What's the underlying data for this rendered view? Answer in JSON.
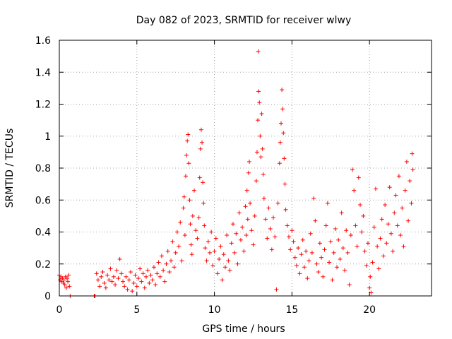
{
  "chart_data": {
    "type": "scatter",
    "title": "Day 082 of 2023, SRMTID for receiver wlwy",
    "xlabel": "GPS time / hours",
    "ylabel": "SRMTID / TECUs",
    "xlim": [
      0,
      24
    ],
    "ylim": [
      0,
      1.6
    ],
    "x_ticks": [
      0,
      5,
      10,
      15,
      20
    ],
    "x_tick_labels": [
      "0",
      "5",
      "10",
      "15",
      "20"
    ],
    "y_ticks": [
      0,
      0.2,
      0.4,
      0.6,
      0.8,
      1.0,
      1.2,
      1.4,
      1.6
    ],
    "y_tick_labels": [
      "0",
      "0.2",
      "0.4",
      "0.6",
      "0.8",
      "1",
      "1.2",
      "1.4",
      "1.6"
    ],
    "grid": true,
    "marker": "+",
    "color": "#ff0000",
    "points": [
      [
        0.0,
        0.13
      ],
      [
        0.05,
        0.1
      ],
      [
        0.1,
        0.12
      ],
      [
        0.15,
        0.09
      ],
      [
        0.2,
        0.11
      ],
      [
        0.25,
        0.08
      ],
      [
        0.3,
        0.1
      ],
      [
        0.35,
        0.07
      ],
      [
        0.4,
        0.12
      ],
      [
        0.45,
        0.05
      ],
      [
        0.5,
        0.11
      ],
      [
        0.55,
        0.09
      ],
      [
        0.6,
        0.13
      ],
      [
        0.65,
        0.06
      ],
      [
        0.7,
        0.0
      ],
      [
        2.25,
        0.0
      ],
      [
        2.3,
        0.0
      ],
      [
        2.4,
        0.14
      ],
      [
        2.5,
        0.1
      ],
      [
        2.6,
        0.06
      ],
      [
        2.7,
        0.12
      ],
      [
        2.8,
        0.15
      ],
      [
        2.9,
        0.08
      ],
      [
        3.0,
        0.05
      ],
      [
        3.1,
        0.13
      ],
      [
        3.2,
        0.1
      ],
      [
        3.3,
        0.17
      ],
      [
        3.4,
        0.09
      ],
      [
        3.5,
        0.12
      ],
      [
        3.6,
        0.07
      ],
      [
        3.7,
        0.16
      ],
      [
        3.8,
        0.11
      ],
      [
        3.9,
        0.23
      ],
      [
        4.0,
        0.14
      ],
      [
        4.1,
        0.09
      ],
      [
        4.2,
        0.06
      ],
      [
        4.3,
        0.12
      ],
      [
        4.4,
        0.04
      ],
      [
        4.5,
        0.1
      ],
      [
        4.6,
        0.15
      ],
      [
        4.7,
        0.03
      ],
      [
        4.8,
        0.08
      ],
      [
        4.9,
        0.13
      ],
      [
        5.0,
        0.06
      ],
      [
        5.1,
        0.11
      ],
      [
        5.2,
        0.17
      ],
      [
        5.3,
        0.09
      ],
      [
        5.4,
        0.14
      ],
      [
        5.5,
        0.05
      ],
      [
        5.6,
        0.12
      ],
      [
        5.7,
        0.16
      ],
      [
        5.8,
        0.08
      ],
      [
        5.9,
        0.13
      ],
      [
        6.0,
        0.1
      ],
      [
        6.1,
        0.18
      ],
      [
        6.2,
        0.07
      ],
      [
        6.3,
        0.14
      ],
      [
        6.4,
        0.21
      ],
      [
        6.5,
        0.12
      ],
      [
        6.6,
        0.25
      ],
      [
        6.7,
        0.16
      ],
      [
        6.8,
        0.09
      ],
      [
        6.9,
        0.2
      ],
      [
        7.0,
        0.28
      ],
      [
        7.1,
        0.15
      ],
      [
        7.2,
        0.22
      ],
      [
        7.3,
        0.34
      ],
      [
        7.4,
        0.18
      ],
      [
        7.5,
        0.27
      ],
      [
        7.6,
        0.4
      ],
      [
        7.7,
        0.31
      ],
      [
        7.8,
        0.46
      ],
      [
        7.9,
        0.22
      ],
      [
        8.0,
        0.55
      ],
      [
        8.05,
        0.62
      ],
      [
        8.1,
        0.38
      ],
      [
        8.15,
        0.75
      ],
      [
        8.2,
        0.88
      ],
      [
        8.25,
        0.97
      ],
      [
        8.3,
        1.01
      ],
      [
        8.35,
        0.83
      ],
      [
        8.4,
        0.6
      ],
      [
        8.45,
        0.45
      ],
      [
        8.5,
        0.32
      ],
      [
        8.55,
        0.26
      ],
      [
        8.6,
        0.5
      ],
      [
        8.7,
        0.66
      ],
      [
        8.8,
        0.41
      ],
      [
        8.9,
        0.36
      ],
      [
        9.0,
        0.49
      ],
      [
        9.05,
        0.74
      ],
      [
        9.1,
        0.92
      ],
      [
        9.15,
        1.04
      ],
      [
        9.2,
        0.96
      ],
      [
        9.25,
        0.71
      ],
      [
        9.3,
        0.58
      ],
      [
        9.35,
        0.44
      ],
      [
        9.4,
        0.3
      ],
      [
        9.5,
        0.22
      ],
      [
        9.6,
        0.34
      ],
      [
        9.7,
        0.27
      ],
      [
        9.8,
        0.4
      ],
      [
        9.9,
        0.19
      ],
      [
        10.0,
        0.28
      ],
      [
        10.1,
        0.36
      ],
      [
        10.2,
        0.14
      ],
      [
        10.3,
        0.23
      ],
      [
        10.4,
        0.31
      ],
      [
        10.5,
        0.1
      ],
      [
        10.6,
        0.26
      ],
      [
        10.7,
        0.18
      ],
      [
        10.8,
        0.38
      ],
      [
        10.9,
        0.22
      ],
      [
        11.0,
        0.16
      ],
      [
        11.1,
        0.33
      ],
      [
        11.2,
        0.45
      ],
      [
        11.3,
        0.27
      ],
      [
        11.4,
        0.39
      ],
      [
        11.5,
        0.2
      ],
      [
        11.6,
        0.52
      ],
      [
        11.7,
        0.35
      ],
      [
        11.8,
        0.43
      ],
      [
        11.9,
        0.28
      ],
      [
        12.0,
        0.56
      ],
      [
        12.05,
        0.38
      ],
      [
        12.1,
        0.66
      ],
      [
        12.15,
        0.48
      ],
      [
        12.2,
        0.77
      ],
      [
        12.25,
        0.84
      ],
      [
        12.3,
        0.58
      ],
      [
        12.4,
        0.41
      ],
      [
        12.5,
        0.32
      ],
      [
        12.6,
        0.5
      ],
      [
        12.7,
        0.72
      ],
      [
        12.75,
        0.9
      ],
      [
        12.8,
        1.1
      ],
      [
        12.82,
        1.53
      ],
      [
        12.85,
        1.28
      ],
      [
        12.9,
        1.21
      ],
      [
        12.95,
        1.0
      ],
      [
        13.0,
        0.87
      ],
      [
        13.05,
        1.14
      ],
      [
        13.1,
        0.92
      ],
      [
        13.15,
        0.76
      ],
      [
        13.2,
        0.61
      ],
      [
        13.3,
        0.48
      ],
      [
        13.4,
        0.36
      ],
      [
        13.5,
        0.55
      ],
      [
        13.6,
        0.42
      ],
      [
        13.7,
        0.29
      ],
      [
        13.8,
        0.49
      ],
      [
        13.9,
        0.37
      ],
      [
        14.0,
        0.04
      ],
      [
        14.1,
        0.58
      ],
      [
        14.2,
        0.83
      ],
      [
        14.25,
        0.96
      ],
      [
        14.3,
        1.08
      ],
      [
        14.35,
        1.29
      ],
      [
        14.4,
        1.17
      ],
      [
        14.45,
        1.02
      ],
      [
        14.5,
        0.86
      ],
      [
        14.55,
        0.7
      ],
      [
        14.6,
        0.54
      ],
      [
        14.7,
        0.44
      ],
      [
        14.8,
        0.37
      ],
      [
        14.9,
        0.29
      ],
      [
        15.0,
        0.41
      ],
      [
        15.1,
        0.34
      ],
      [
        15.2,
        0.24
      ],
      [
        15.3,
        0.19
      ],
      [
        15.4,
        0.3
      ],
      [
        15.5,
        0.14
      ],
      [
        15.6,
        0.26
      ],
      [
        15.7,
        0.35
      ],
      [
        15.8,
        0.18
      ],
      [
        15.9,
        0.28
      ],
      [
        16.0,
        0.11
      ],
      [
        16.1,
        0.22
      ],
      [
        16.2,
        0.39
      ],
      [
        16.3,
        0.27
      ],
      [
        16.4,
        0.61
      ],
      [
        16.5,
        0.47
      ],
      [
        16.6,
        0.2
      ],
      [
        16.7,
        0.15
      ],
      [
        16.8,
        0.33
      ],
      [
        16.9,
        0.24
      ],
      [
        17.0,
        0.12
      ],
      [
        17.1,
        0.29
      ],
      [
        17.2,
        0.44
      ],
      [
        17.3,
        0.58
      ],
      [
        17.4,
        0.21
      ],
      [
        17.5,
        0.34
      ],
      [
        17.6,
        0.1
      ],
      [
        17.7,
        0.27
      ],
      [
        17.8,
        0.42
      ],
      [
        17.9,
        0.18
      ],
      [
        18.0,
        0.35
      ],
      [
        18.1,
        0.23
      ],
      [
        18.2,
        0.52
      ],
      [
        18.3,
        0.3
      ],
      [
        18.4,
        0.16
      ],
      [
        18.5,
        0.41
      ],
      [
        18.6,
        0.27
      ],
      [
        18.7,
        0.07
      ],
      [
        18.8,
        0.38
      ],
      [
        18.9,
        0.79
      ],
      [
        19.0,
        0.66
      ],
      [
        19.1,
        0.44
      ],
      [
        19.2,
        0.31
      ],
      [
        19.3,
        0.74
      ],
      [
        19.4,
        0.57
      ],
      [
        19.5,
        0.4
      ],
      [
        19.6,
        0.5
      ],
      [
        19.7,
        0.28
      ],
      [
        19.8,
        0.19
      ],
      [
        19.9,
        0.33
      ],
      [
        20.0,
        0.05
      ],
      [
        20.05,
        0.12
      ],
      [
        20.1,
        0.02
      ],
      [
        20.2,
        0.21
      ],
      [
        20.3,
        0.43
      ],
      [
        20.4,
        0.67
      ],
      [
        20.5,
        0.31
      ],
      [
        20.6,
        0.17
      ],
      [
        20.7,
        0.36
      ],
      [
        20.8,
        0.48
      ],
      [
        20.9,
        0.25
      ],
      [
        21.0,
        0.57
      ],
      [
        21.1,
        0.33
      ],
      [
        21.2,
        0.45
      ],
      [
        21.3,
        0.68
      ],
      [
        21.4,
        0.39
      ],
      [
        21.5,
        0.28
      ],
      [
        21.6,
        0.52
      ],
      [
        21.7,
        0.63
      ],
      [
        21.8,
        0.44
      ],
      [
        21.9,
        0.75
      ],
      [
        22.0,
        0.38
      ],
      [
        22.1,
        0.55
      ],
      [
        22.2,
        0.31
      ],
      [
        22.3,
        0.66
      ],
      [
        22.4,
        0.84
      ],
      [
        22.5,
        0.47
      ],
      [
        22.6,
        0.72
      ],
      [
        22.7,
        0.58
      ],
      [
        22.75,
        0.89
      ],
      [
        22.8,
        0.79
      ]
    ]
  }
}
